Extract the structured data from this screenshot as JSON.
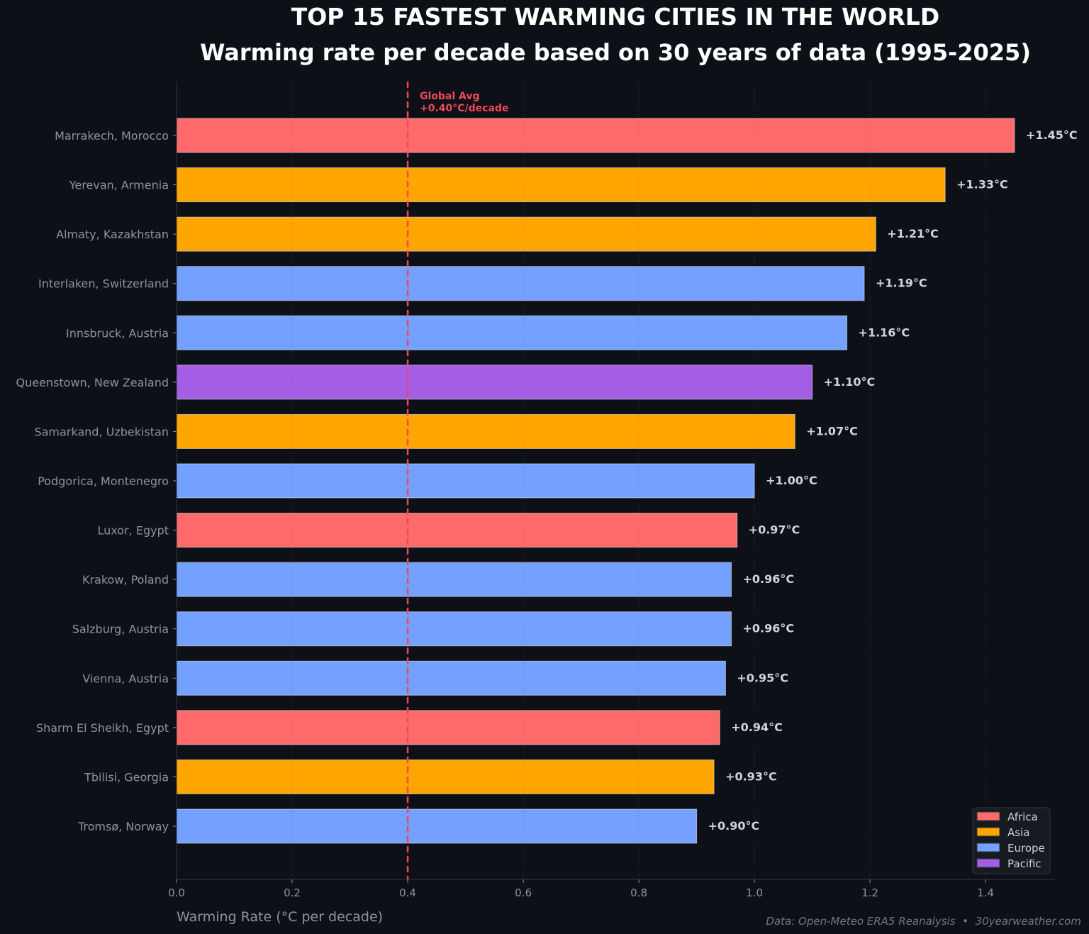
{
  "chart_data": {
    "type": "bar",
    "orientation": "horizontal",
    "title": "TOP 15 FASTEST WARMING CITIES IN THE WORLD",
    "subtitle": "Warming rate per decade based on 30 years of data (1995-2025)",
    "xlabel": "Warming Rate (°C per decade)",
    "ylabel": "",
    "xlim": [
      0,
      1.52
    ],
    "xticks": [
      "0.0",
      "0.2",
      "0.4",
      "0.6",
      "0.8",
      "1.0",
      "1.2",
      "1.4"
    ],
    "grid": "vertical dashed",
    "legend_position": "bottom-right",
    "categories": [
      "Marrakech, Morocco",
      "Yerevan, Armenia",
      "Almaty, Kazakhstan",
      "Interlaken, Switzerland",
      "Innsbruck, Austria",
      "Queenstown, New Zealand",
      "Samarkand, Uzbekistan",
      "Podgorica, Montenegro",
      "Luxor, Egypt",
      "Krakow, Poland",
      "Salzburg, Austria",
      "Vienna, Austria",
      "Sharm El Sheikh, Egypt",
      "Tbilisi, Georgia",
      "Tromsø, Norway"
    ],
    "values": [
      1.45,
      1.33,
      1.21,
      1.19,
      1.16,
      1.1,
      1.07,
      1.0,
      0.97,
      0.96,
      0.96,
      0.95,
      0.94,
      0.93,
      0.9
    ],
    "data_labels": [
      "+1.45°C",
      "+1.33°C",
      "+1.21°C",
      "+1.19°C",
      "+1.16°C",
      "+1.10°C",
      "+1.07°C",
      "+1.00°C",
      "+0.97°C",
      "+0.96°C",
      "+0.96°C",
      "+0.95°C",
      "+0.94°C",
      "+0.93°C",
      "+0.90°C"
    ],
    "regions": [
      "Africa",
      "Asia",
      "Asia",
      "Europe",
      "Europe",
      "Pacific",
      "Asia",
      "Europe",
      "Africa",
      "Europe",
      "Europe",
      "Europe",
      "Africa",
      "Asia",
      "Europe"
    ],
    "legend": [
      {
        "name": "Africa",
        "color": "#ff6b6b"
      },
      {
        "name": "Asia",
        "color": "#ffa500"
      },
      {
        "name": "Europe",
        "color": "#74a0ff"
      },
      {
        "name": "Pacific",
        "color": "#a45ee5"
      }
    ],
    "reference_line": {
      "value": 0.4,
      "label_line1": "Global Avg",
      "label_line2": "+0.40°C/decade",
      "color": "#f0475a"
    },
    "source": "Data: Open-Meteo ERA5 Reanalysis  •  30yearweather.com"
  }
}
